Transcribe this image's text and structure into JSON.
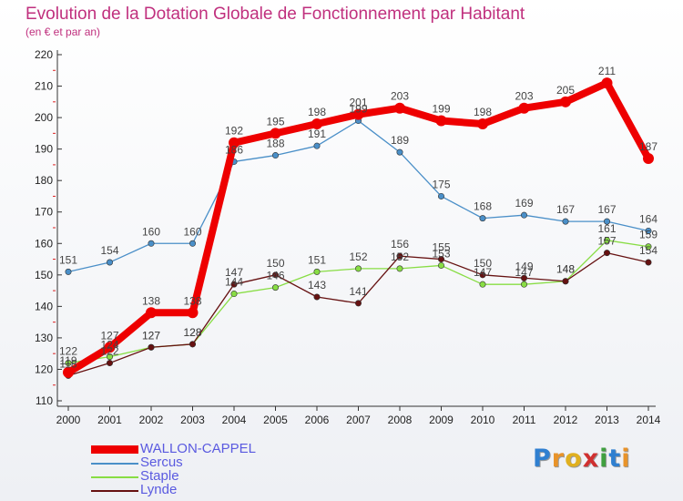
{
  "title": "Evolution de la Dotation Globale de Fonctionnement par Habitant",
  "subtitle": "(en € et par an)",
  "logo": "Proxiti",
  "colors": {
    "title": "#c0307e",
    "legend_text": "#5a5ae0"
  },
  "chart_data": {
    "type": "line",
    "title": "Evolution de la Dotation Globale de Fonctionnement par Habitant",
    "subtitle": "(en € et par an)",
    "xlabel": "",
    "ylabel": "",
    "ylim": [
      110,
      220
    ],
    "yticks": [
      110,
      120,
      130,
      140,
      150,
      160,
      170,
      180,
      190,
      200,
      210,
      220
    ],
    "categories": [
      "2000",
      "2001",
      "2002",
      "2003",
      "2004",
      "2005",
      "2006",
      "2007",
      "2008",
      "2009",
      "2010",
      "2011",
      "2012",
      "2013",
      "2014"
    ],
    "grid": false,
    "legend": "bottom-left",
    "series": [
      {
        "name": "WALLON-CAPPEL",
        "color": "#ee0000",
        "values": [
          119,
          127,
          138,
          138,
          192,
          195,
          198,
          201,
          203,
          199,
          198,
          203,
          205,
          211,
          187
        ]
      },
      {
        "name": "Sercus",
        "color": "#4a8fc8",
        "values": [
          151,
          154,
          160,
          160,
          186,
          188,
          191,
          199,
          189,
          175,
          168,
          169,
          167,
          167,
          164
        ]
      },
      {
        "name": "Staple",
        "color": "#88dd44",
        "values": [
          122,
          124,
          127,
          128,
          144,
          146,
          151,
          152,
          152,
          153,
          147,
          147,
          148,
          161,
          159
        ]
      },
      {
        "name": "Lynde",
        "color": "#661111",
        "values": [
          118,
          122,
          127,
          128,
          147,
          150,
          143,
          141,
          156,
          155,
          150,
          149,
          148,
          157,
          154
        ]
      }
    ]
  }
}
